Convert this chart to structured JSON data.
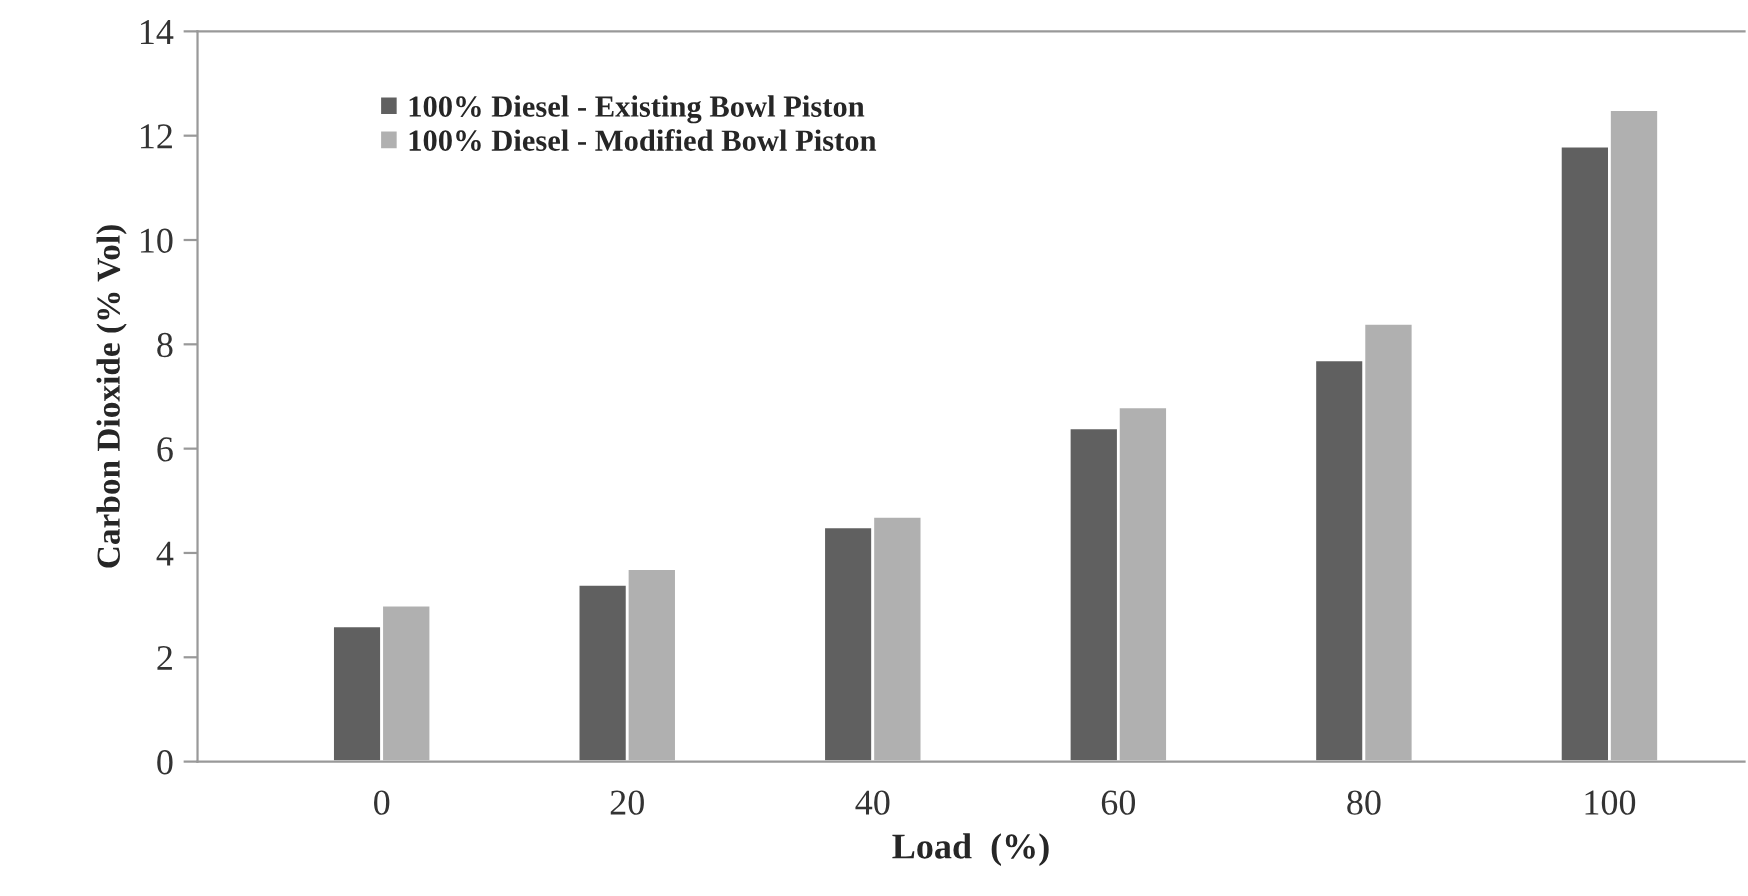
{
  "chart_data": {
    "type": "bar",
    "xlabel": "Load  (%)",
    "ylabel": "Carbon Dioxide (% Vol)",
    "categories": [
      "0",
      "20",
      "40",
      "60",
      "80",
      "100"
    ],
    "series": [
      {
        "name": "100% Diesel - Existing Bowl Piston",
        "color": "#606060",
        "values": [
          2.6,
          3.4,
          4.5,
          6.4,
          7.7,
          11.8
        ]
      },
      {
        "name": "100% Diesel - Modified Bowl Piston",
        "color": "#b0b0b0",
        "values": [
          3.0,
          3.7,
          4.7,
          6.8,
          8.4,
          12.5
        ]
      }
    ],
    "ylim": [
      0,
      14
    ],
    "yticks": [
      0,
      2,
      4,
      6,
      8,
      10,
      12,
      14
    ],
    "grid": false,
    "legend": "top left"
  }
}
